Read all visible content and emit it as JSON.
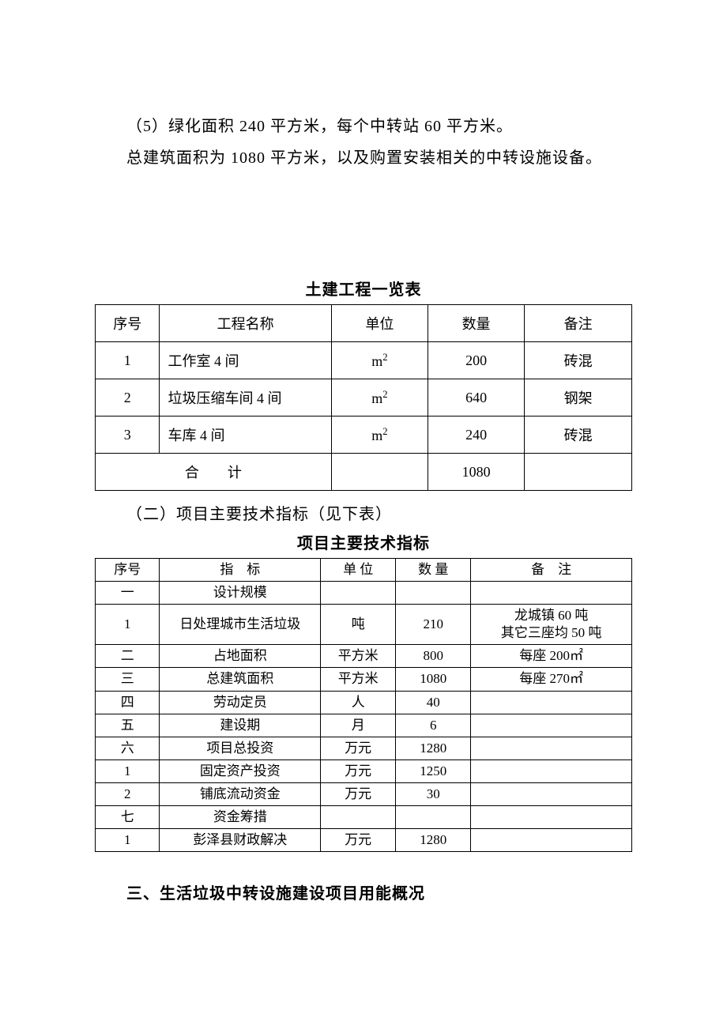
{
  "paragraphs": {
    "p1": "（5）绿化面积 240 平方米，每个中转站 60 平方米。",
    "p2": "总建筑面积为 1080 平方米，以及购置安装相关的中转设施设备。"
  },
  "table1": {
    "title": "土建工程一览表",
    "columns": [
      "序号",
      "工程名称",
      "单位",
      "数量",
      "备注"
    ],
    "col_widths": [
      "12%",
      "32%",
      "18%",
      "18%",
      "20%"
    ],
    "rows": [
      [
        "1",
        "工作室 4 间",
        "m²",
        "200",
        "砖混"
      ],
      [
        "2",
        "垃圾压缩车间 4 间",
        "m²",
        "640",
        "钢架"
      ],
      [
        "3",
        "车库 4 间",
        "m²",
        "240",
        "砖混"
      ]
    ],
    "total_label": "合　　计",
    "total_qty": "1080"
  },
  "section2_heading": "（二）项目主要技术指标（见下表）",
  "table2": {
    "title": "项目主要技术指标",
    "columns": [
      "序号",
      "指　标",
      "单 位",
      "数 量",
      "备　注"
    ],
    "col_widths": [
      "12%",
      "30%",
      "14%",
      "14%",
      "30%"
    ],
    "rows": [
      [
        "一",
        "设计规模",
        "",
        "",
        ""
      ],
      [
        "1",
        "日处理城市生活垃圾",
        "吨",
        "210",
        "龙城镇 60 吨\n其它三座均 50 吨"
      ],
      [
        "二",
        "占地面积",
        "平方米",
        "800",
        "每座 200㎡"
      ],
      [
        "三",
        "总建筑面积",
        "平方米",
        "1080",
        "每座 270㎡"
      ],
      [
        "四",
        "劳动定员",
        "人",
        "40",
        ""
      ],
      [
        "五",
        "建设期",
        "月",
        "6",
        ""
      ],
      [
        "六",
        "项目总投资",
        "万元",
        "1280",
        ""
      ],
      [
        "1",
        "固定资产投资",
        "万元",
        "1250",
        ""
      ],
      [
        "2",
        "铺底流动资金",
        "万元",
        "30",
        ""
      ],
      [
        "七",
        "资金筹措",
        "",
        "",
        ""
      ],
      [
        "1",
        "彭泽县财政解决",
        "万元",
        "1280",
        ""
      ]
    ]
  },
  "section3_heading": "三、生活垃圾中转设施建设项目用能概况"
}
